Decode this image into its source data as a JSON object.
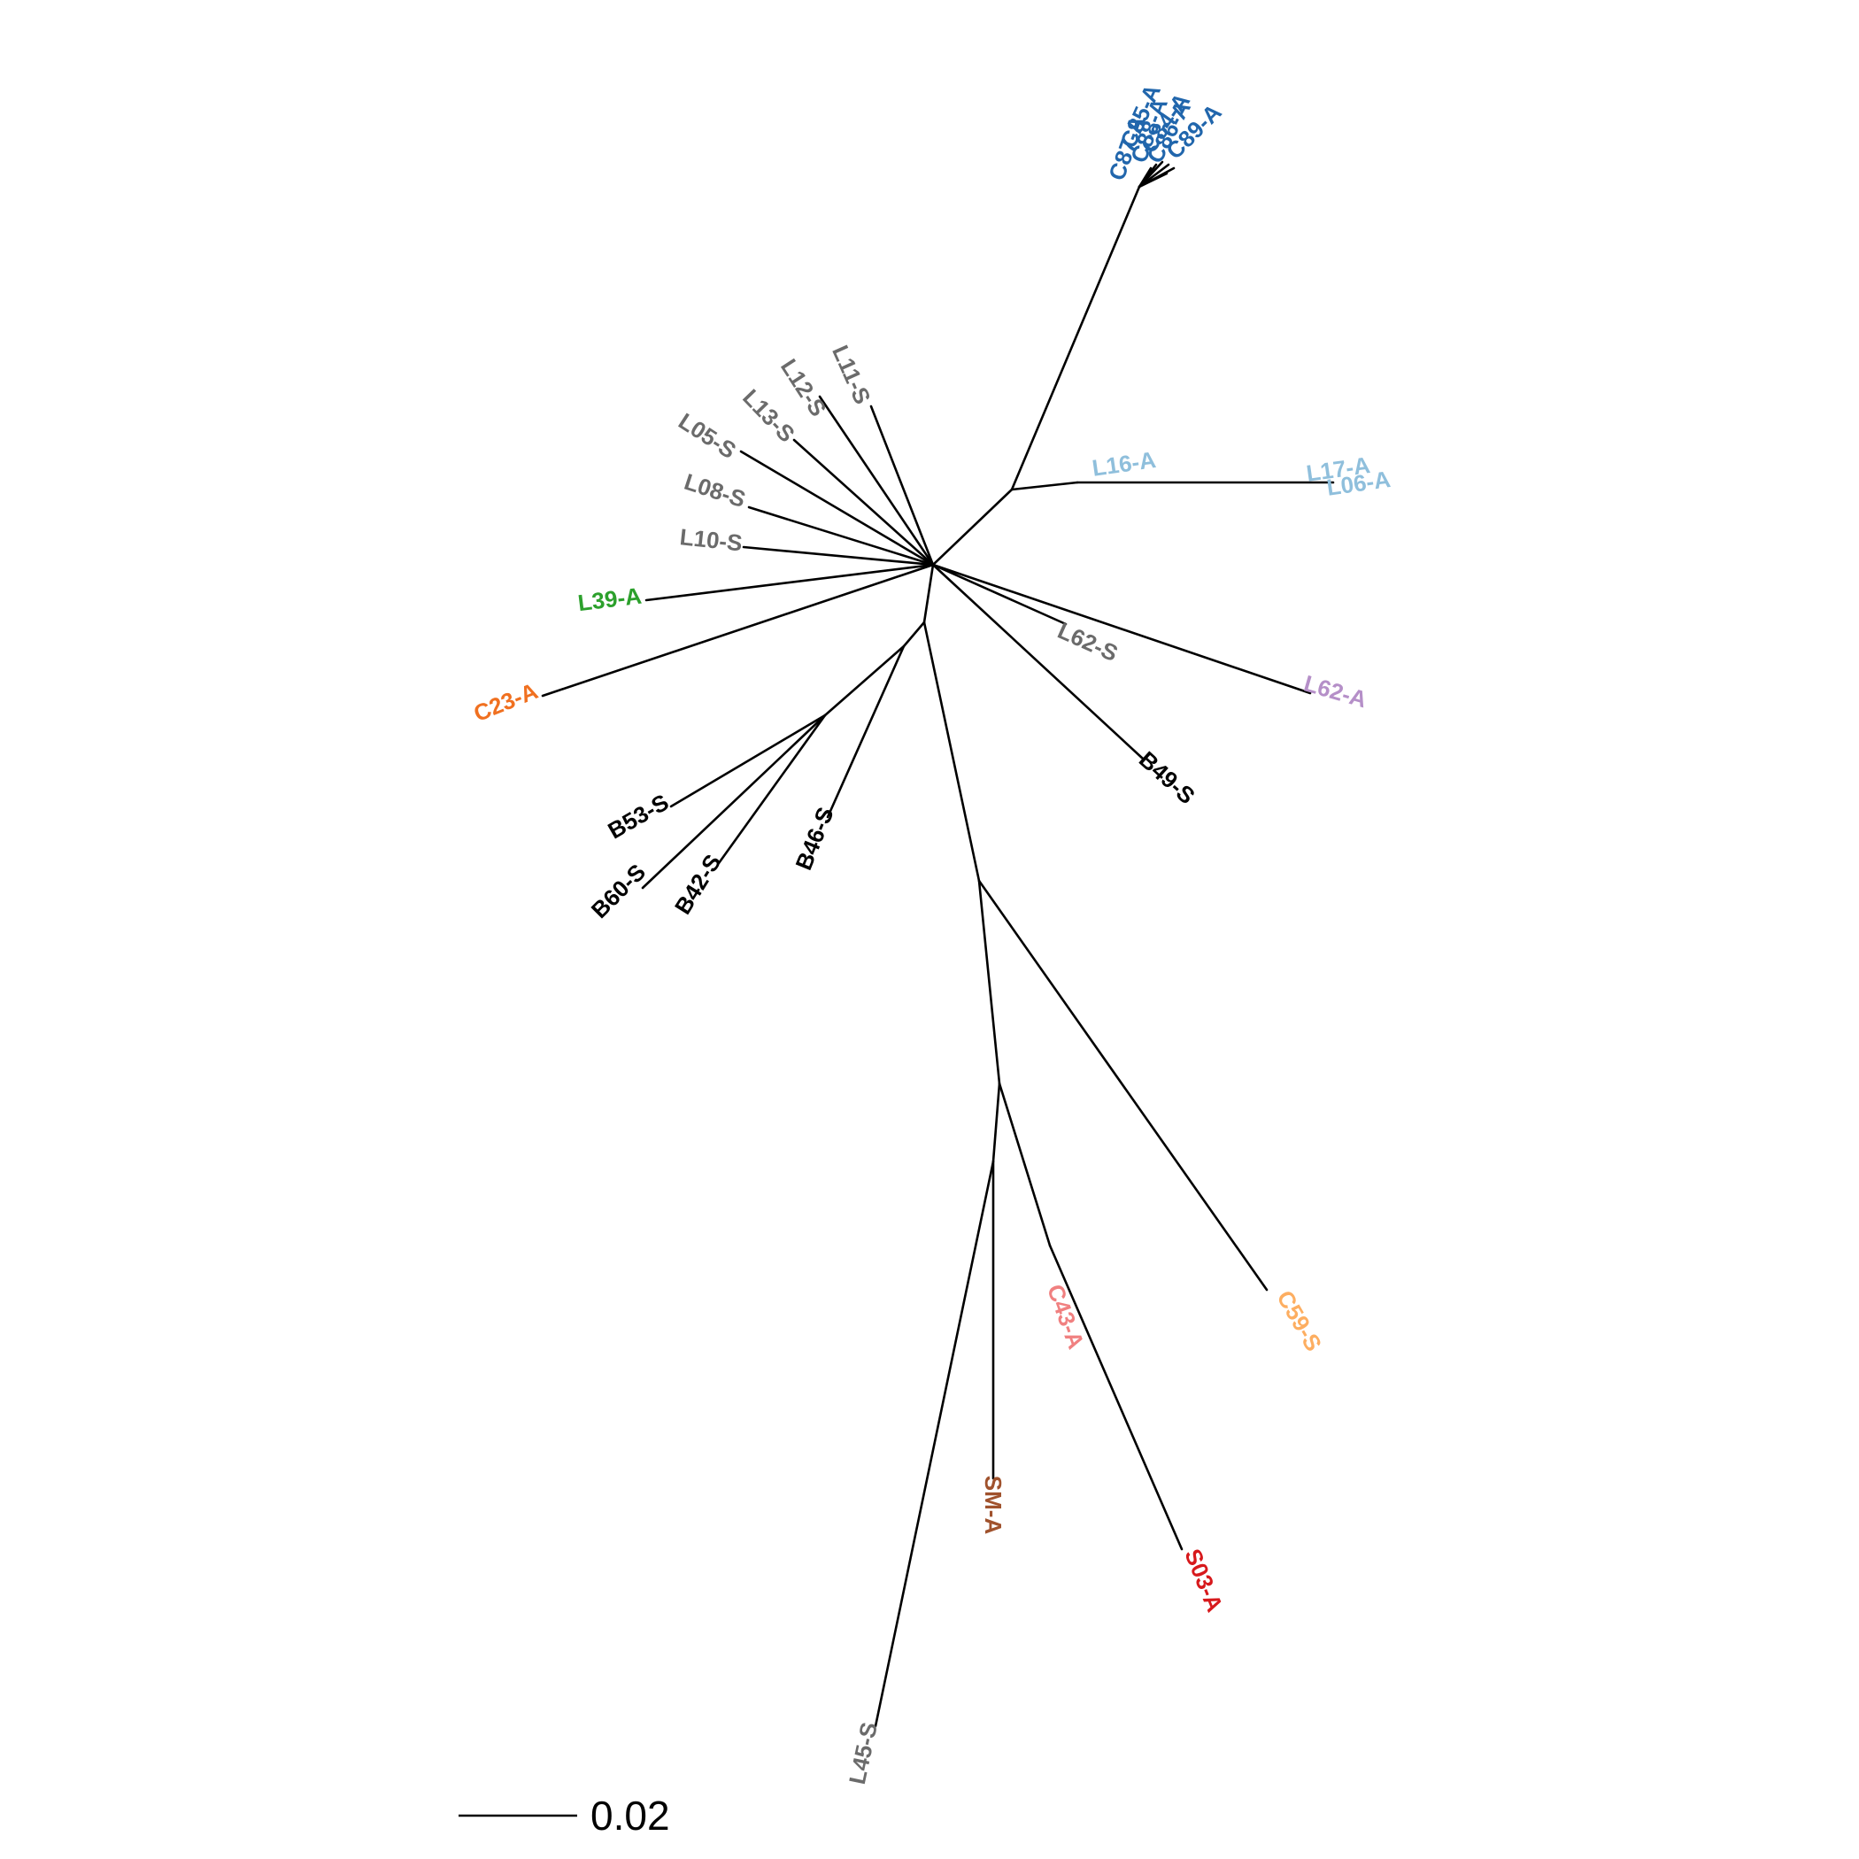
{
  "palette": {
    "black": "#000000",
    "grey": "#6b6b6b",
    "dark_blue": "#2166ac",
    "light_blue": "#8fbfdc",
    "purple": "#b58fc8",
    "green": "#2ca02c",
    "orange": "#f07020",
    "pink": "#f08080",
    "light_orange": "#fdae61",
    "brown": "#a0522d",
    "red": "#d7191c"
  },
  "tips": [
    {
      "key": "c87",
      "label": "C87-A",
      "color": "dark_blue"
    },
    {
      "key": "c88",
      "label": "C88-A",
      "color": "dark_blue"
    },
    {
      "key": "c85",
      "label": "C85-A",
      "color": "dark_blue"
    },
    {
      "key": "c86",
      "label": "C86-A",
      "color": "dark_blue"
    },
    {
      "key": "c84",
      "label": "C84-A",
      "color": "dark_blue"
    },
    {
      "key": "c89",
      "label": "C89-A",
      "color": "dark_blue"
    },
    {
      "key": "l16",
      "label": "L16-A",
      "color": "light_blue"
    },
    {
      "key": "l17",
      "label": "L17-A",
      "color": "light_blue"
    },
    {
      "key": "l06",
      "label": "L06-A",
      "color": "light_blue"
    },
    {
      "key": "l11",
      "label": "L11-S",
      "color": "grey"
    },
    {
      "key": "l12",
      "label": "L12-S",
      "color": "grey"
    },
    {
      "key": "l13",
      "label": "L13-S",
      "color": "grey"
    },
    {
      "key": "l05",
      "label": "L05-S",
      "color": "grey"
    },
    {
      "key": "l08",
      "label": "L08-S",
      "color": "grey"
    },
    {
      "key": "l10",
      "label": "L10-S",
      "color": "grey"
    },
    {
      "key": "l39",
      "label": "L39-A",
      "color": "green"
    },
    {
      "key": "c23",
      "label": "C23-A",
      "color": "orange"
    },
    {
      "key": "l62s",
      "label": "L62-S",
      "color": "grey"
    },
    {
      "key": "l62a",
      "label": "L62-A",
      "color": "purple"
    },
    {
      "key": "b49",
      "label": "B49-S",
      "color": "black"
    },
    {
      "key": "b53",
      "label": "B53-S",
      "color": "black"
    },
    {
      "key": "b60",
      "label": "B60-S",
      "color": "black"
    },
    {
      "key": "b42",
      "label": "B42-S",
      "color": "black"
    },
    {
      "key": "b46",
      "label": "B46-S",
      "color": "black"
    },
    {
      "key": "c43",
      "label": "C43-A",
      "color": "pink"
    },
    {
      "key": "c59",
      "label": "C59-S",
      "color": "light_orange"
    },
    {
      "key": "sm",
      "label": "SM-A",
      "color": "brown"
    },
    {
      "key": "s03",
      "label": "S03-A",
      "color": "red"
    },
    {
      "key": "l45",
      "label": "L45-S",
      "color": "grey"
    }
  ],
  "scale_bar": {
    "label": "0.02",
    "length": 0.02
  }
}
